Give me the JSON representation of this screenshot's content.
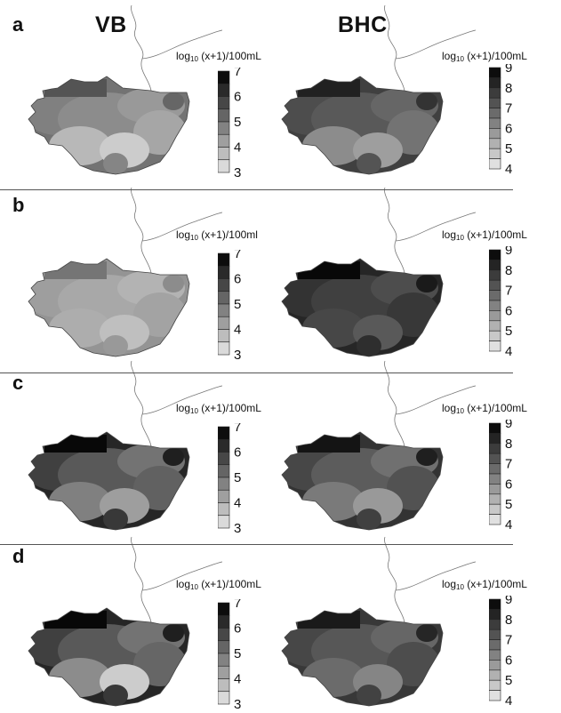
{
  "chart_data": {
    "type": "heatmap",
    "columns": [
      "VB",
      "BHC"
    ],
    "unit_label": {
      "prefix": "log",
      "subscript": "10",
      "body": "(x+1)/100mL"
    },
    "panels": [
      {
        "label": "a",
        "maps": [
          {
            "column": "VB",
            "scale_ticks": [
              7,
              6,
              5,
              4,
              3
            ],
            "unit_body": "(x+1)/100mL",
            "fill_levels": [
              0.45,
              0.5,
              0.55,
              0.6,
              0.65,
              0.72,
              0.8,
              0.52,
              0.4
            ]
          },
          {
            "column": "BHC",
            "scale_ticks": [
              9,
              8,
              7,
              6,
              5,
              4
            ],
            "unit_body": "(x+1)/100mL",
            "fill_levels": [
              0.25,
              0.3,
              0.35,
              0.4,
              0.45,
              0.55,
              0.62,
              0.33,
              0.2
            ]
          }
        ]
      },
      {
        "label": "b",
        "maps": [
          {
            "column": "VB",
            "scale_ticks": [
              7,
              6,
              5,
              4,
              3
            ],
            "unit_body": "(x+1)/100ml",
            "fill_levels": [
              0.58,
              0.62,
              0.66,
              0.7,
              0.64,
              0.68,
              0.75,
              0.6,
              0.55
            ]
          },
          {
            "column": "BHC",
            "scale_ticks": [
              9,
              8,
              7,
              6,
              5,
              4
            ],
            "unit_body": "(x+1)/100mL",
            "fill_levels": [
              0.15,
              0.2,
              0.25,
              0.3,
              0.22,
              0.28,
              0.35,
              0.18,
              0.1
            ]
          }
        ]
      },
      {
        "label": "c",
        "maps": [
          {
            "column": "VB",
            "scale_ticks": [
              7,
              6,
              5,
              4,
              3
            ],
            "unit_body": "(x+1)/100mL",
            "fill_levels": [
              0.15,
              0.25,
              0.35,
              0.45,
              0.38,
              0.5,
              0.62,
              0.22,
              0.12
            ]
          },
          {
            "column": "BHC",
            "scale_ticks": [
              9,
              8,
              7,
              6,
              5,
              4
            ],
            "unit_body": "(x+1)/100mL",
            "fill_levels": [
              0.2,
              0.28,
              0.36,
              0.44,
              0.32,
              0.48,
              0.6,
              0.25,
              0.12
            ]
          }
        ]
      },
      {
        "label": "d",
        "maps": [
          {
            "column": "VB",
            "scale_ticks": [
              7,
              6,
              5,
              4,
              3
            ],
            "unit_body": "(x+1)/100mL",
            "fill_levels": [
              0.15,
              0.25,
              0.35,
              0.45,
              0.4,
              0.55,
              0.8,
              0.22,
              0.12
            ]
          },
          {
            "column": "BHC",
            "scale_ticks": [
              9,
              8,
              7,
              6,
              5,
              4
            ],
            "unit_body": "(x+1)/100mL",
            "fill_levels": [
              0.22,
              0.28,
              0.34,
              0.4,
              0.3,
              0.42,
              0.52,
              0.26,
              0.15
            ]
          }
        ]
      }
    ]
  }
}
